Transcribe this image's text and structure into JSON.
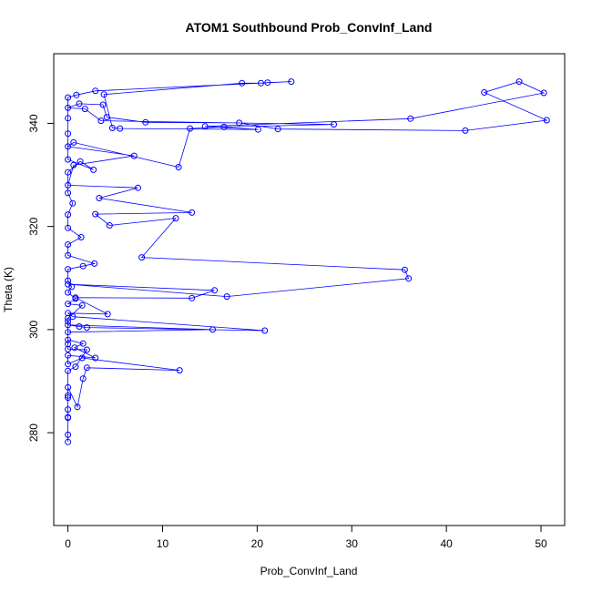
{
  "chart_data": {
    "type": "line",
    "title": "ATOM1 Southbound Prob_ConvInf_Land",
    "xlabel": "Prob_ConvInf_Land",
    "ylabel": "Theta (K)",
    "xlim": [
      -1.5,
      52.5
    ],
    "ylim": [
      262,
      353.5
    ],
    "x_ticks": [
      0,
      10,
      20,
      30,
      40,
      50
    ],
    "y_ticks": [
      280,
      300,
      320,
      340
    ],
    "x_tick_labels": [
      "0",
      "10",
      "20",
      "30",
      "40",
      "50"
    ],
    "y_tick_labels": [
      "280",
      "300",
      "320",
      "340"
    ],
    "grid": false,
    "legend": "none",
    "color": "#0000ff",
    "series": [
      {
        "points": [
          [
            0,
            278.2
          ],
          [
            0,
            279.6
          ],
          [
            0,
            283.0
          ],
          [
            0,
            284.5
          ],
          [
            0,
            286.8
          ],
          [
            0,
            288.8
          ],
          [
            1.0,
            285.0
          ],
          [
            1.6,
            290.5
          ],
          [
            2.0,
            292.6
          ],
          [
            11.8,
            292.1
          ],
          [
            1.5,
            294.5
          ],
          [
            0,
            293.3
          ],
          [
            0,
            295.0
          ],
          [
            2.9,
            294.5
          ],
          [
            0.7,
            296.5
          ],
          [
            1.6,
            297.3
          ],
          [
            0,
            298.0
          ],
          [
            0,
            299.5
          ],
          [
            15.3,
            300.0
          ],
          [
            0,
            300.9
          ],
          [
            1.2,
            300.6
          ],
          [
            2.0,
            300.4
          ],
          [
            20.8,
            299.8
          ],
          [
            0.5,
            302.5
          ],
          [
            0,
            303.2
          ],
          [
            4.2,
            303.0
          ],
          [
            0.8,
            306.2
          ],
          [
            13.1,
            306.1
          ],
          [
            15.5,
            307.6
          ],
          [
            0,
            308.8
          ],
          [
            16.8,
            306.4
          ],
          [
            36.0,
            309.9
          ],
          [
            35.6,
            311.6
          ],
          [
            7.8,
            314.0
          ],
          [
            11.4,
            321.6
          ],
          [
            4.4,
            320.2
          ],
          [
            2.9,
            322.4
          ],
          [
            13.1,
            322.7
          ],
          [
            3.3,
            325.5
          ],
          [
            7.4,
            327.5
          ],
          [
            0,
            328.0
          ],
          [
            0.6,
            331.9
          ],
          [
            7.0,
            333.7
          ],
          [
            0,
            335.5
          ],
          [
            0.6,
            336.3
          ],
          [
            11.7,
            331.5
          ],
          [
            12.9,
            339.0
          ],
          [
            16.5,
            339.3
          ],
          [
            28.1,
            339.8
          ],
          [
            3.5,
            340.5
          ],
          [
            1.8,
            342.8
          ],
          [
            0,
            343.0
          ],
          [
            1.2,
            343.8
          ],
          [
            3.7,
            343.6
          ],
          [
            4.1,
            341.2
          ],
          [
            8.2,
            340.2
          ],
          [
            18.1,
            340.1
          ],
          [
            22.2,
            338.9
          ],
          [
            42.0,
            338.6
          ],
          [
            50.6,
            340.6
          ],
          [
            44.0,
            346.0
          ],
          [
            47.7,
            348.1
          ],
          [
            50.3,
            345.9
          ],
          [
            36.2,
            340.9
          ],
          [
            14.5,
            339.4
          ],
          [
            20.1,
            338.8
          ],
          [
            5.5,
            339.0
          ],
          [
            4.7,
            339.1
          ],
          [
            3.8,
            345.6
          ],
          [
            18.4,
            347.8
          ],
          [
            20.4,
            347.8
          ],
          [
            21.1,
            347.9
          ],
          [
            23.6,
            348.1
          ],
          [
            2.9,
            346.3
          ],
          [
            0.9,
            345.5
          ],
          [
            0,
            345.0
          ],
          [
            0,
            341.0
          ],
          [
            0,
            338.0
          ],
          [
            0,
            333.0
          ],
          [
            2.7,
            331.0
          ],
          [
            1.3,
            332.6
          ],
          [
            0,
            330.5
          ],
          [
            0,
            326.5
          ],
          [
            0.5,
            324.5
          ],
          [
            0,
            322.3
          ],
          [
            0,
            319.7
          ],
          [
            1.4,
            317.9
          ],
          [
            0,
            316.5
          ],
          [
            0,
            314.4
          ],
          [
            2.8,
            312.8
          ],
          [
            1.6,
            312.3
          ],
          [
            0,
            311.7
          ],
          [
            0,
            309.5
          ],
          [
            0.4,
            308.3
          ],
          [
            0,
            307.2
          ],
          [
            0.8,
            306.0
          ],
          [
            0,
            305.0
          ],
          [
            1.5,
            304.7
          ],
          [
            0,
            302.2
          ],
          [
            0,
            301.6
          ],
          [
            0,
            297.2
          ],
          [
            0,
            296.2
          ],
          [
            2.0,
            296.1
          ],
          [
            0.8,
            292.8
          ],
          [
            0,
            292.0
          ],
          [
            0,
            287.2
          ],
          [
            0,
            282.9
          ]
        ]
      }
    ]
  }
}
